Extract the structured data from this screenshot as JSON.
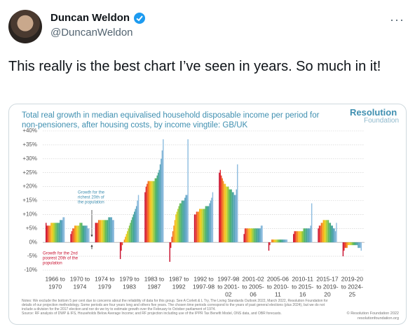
{
  "tweet": {
    "name": "Duncan Weldon",
    "handle": "@DuncanWeldon",
    "text": "This really is the best chart I’ve seen in years. So much in it!"
  },
  "chart_data": {
    "type": "bar",
    "title": "Total real growth in median equivalised household disposable income per period for non-pensioners, after housing costs, by income vingtile: GB/UK",
    "logo": [
      "Resolution",
      "Foundation"
    ],
    "categories": [
      [
        "1966 to",
        "1970"
      ],
      [
        "1970 to",
        "1974"
      ],
      [
        "1974 to",
        "1979"
      ],
      [
        "1979 to",
        "1983"
      ],
      [
        "1983 to",
        "1987"
      ],
      [
        "1987 to",
        "1992"
      ],
      [
        "1992 to",
        "1997-98"
      ],
      [
        "1997-98",
        "to 2001-",
        "02"
      ],
      [
        "2001-02",
        "to 2005-",
        "06"
      ],
      [
        "2005-06",
        "to 2010-",
        "11"
      ],
      [
        "2010-11",
        "to 2015-",
        "16"
      ],
      [
        "2015-17",
        "to 2019-",
        "20"
      ],
      [
        "2019-20",
        "to 2024-",
        "25"
      ]
    ],
    "values": [
      [
        7,
        6,
        6,
        6,
        6,
        7,
        7,
        7,
        7,
        7,
        7,
        7,
        7,
        7,
        8,
        8,
        8,
        9,
        9
      ],
      [
        3,
        4,
        5,
        5,
        6,
        6,
        6,
        6,
        6,
        7,
        7,
        7,
        6,
        6,
        6,
        6,
        6,
        5,
        5
      ],
      [
        7,
        7,
        7,
        8,
        8,
        8,
        8,
        8,
        8,
        8,
        8,
        8,
        8,
        9,
        9,
        9,
        9,
        8,
        8
      ],
      [
        -6,
        -3,
        -1,
        0,
        1,
        2,
        3,
        4,
        5,
        6,
        7,
        8,
        9,
        10,
        11,
        12,
        13,
        15,
        17
      ],
      [
        18,
        20,
        21,
        22,
        22,
        22,
        22,
        22,
        22,
        22,
        23,
        23,
        24,
        25,
        26,
        28,
        30,
        33,
        37
      ],
      [
        -7,
        -2,
        2,
        4,
        6,
        8,
        10,
        11,
        12,
        13,
        14,
        14,
        15,
        15,
        15,
        16,
        17,
        17,
        37
      ],
      [
        10,
        10,
        11,
        11,
        11,
        12,
        12,
        12,
        12,
        12,
        12,
        13,
        13,
        13,
        13,
        14,
        15,
        16,
        18
      ],
      [
        25,
        26,
        24,
        23,
        22,
        21,
        21,
        20,
        20,
        20,
        19,
        19,
        19,
        18,
        18,
        17,
        17,
        19,
        28
      ],
      [
        3,
        5,
        5,
        5,
        5,
        5,
        5,
        5,
        5,
        5,
        5,
        5,
        5,
        5,
        5,
        5,
        5,
        6,
        6
      ],
      [
        -3,
        -1,
        0,
        1,
        1,
        1,
        1,
        1,
        1,
        1,
        1,
        1,
        1,
        1,
        1,
        1,
        1,
        1,
        1
      ],
      [
        3,
        4,
        4,
        4,
        4,
        4,
        4,
        4,
        4,
        4,
        5,
        5,
        5,
        5,
        5,
        5,
        5,
        6,
        14
      ],
      [
        5,
        6,
        6,
        7,
        7,
        8,
        8,
        8,
        8,
        8,
        8,
        7,
        7,
        6,
        6,
        5,
        5,
        4,
        7
      ],
      [
        -5,
        -3,
        -2,
        -2,
        -2,
        -1,
        -1,
        -1,
        -1,
        -1,
        -1,
        -1,
        -1,
        -1,
        -1,
        -2,
        -2,
        -2,
        -3
      ]
    ],
    "colors": [
      "#c8102e",
      "#e0262f",
      "#ec4a2a",
      "#f26f23",
      "#f5921e",
      "#f7b21c",
      "#f2c91f",
      "#d9d226",
      "#b3cf35",
      "#8cc645",
      "#66bc57",
      "#4fb26b",
      "#45aa80",
      "#45a595",
      "#4aa2a8",
      "#56a3ba",
      "#66a8c8",
      "#7bb1d4",
      "#8fbde0"
    ],
    "ylim": [
      -10,
      40
    ],
    "yticks": [
      {
        "value": 40,
        "label": "+40%"
      },
      {
        "value": 35,
        "label": "+35%"
      },
      {
        "value": 30,
        "label": "+30%"
      },
      {
        "value": 25,
        "label": "+25%"
      },
      {
        "value": 20,
        "label": "+20%"
      },
      {
        "value": 15,
        "label": "+15%"
      },
      {
        "value": 10,
        "label": "+10%"
      },
      {
        "value": 5,
        "label": "+5%"
      },
      {
        "value": 0,
        "label": "0%"
      },
      {
        "value": -5,
        "label": "-5%"
      },
      {
        "value": -10,
        "label": "-10%"
      }
    ],
    "grid": true,
    "annotations": [
      [
        "Growth for the",
        "richest 20th of",
        "the population"
      ],
      [
        "Growth for the 2nd",
        "poorest 20th of the",
        "population"
      ]
    ],
    "notes": "Notes: We exclude the bottom 5 per cent due to concerns about the reliability of data for this group. See A Corlett & L Try, The Living Standards Outlook 2022, March 2022, Resolution Foundation for details of our projection methodology. Some periods are four years long and others five years. The chosen time periods correspond to the years of past general elections (plus 2024), but we do not include a division for the 2017 election and nor do we try to estimate growth over the February to October parliament of 1974.",
    "source": "Source: RF analysis of DWP & IFS, Households Below Average Income; and RF projection including use of the IPPR Tax Benefit Model, ONS data, and OBR forecasts.",
    "copyright": [
      "© Resolution Foundation 2022",
      "resolutionfoundation.org"
    ]
  }
}
